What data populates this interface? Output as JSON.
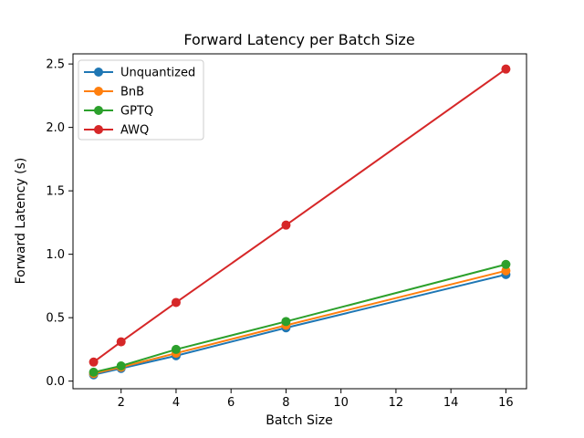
{
  "figure": {
    "background": "#ffffff",
    "frame_color": "#000000",
    "legend_border_color": "#cccccc"
  },
  "chart_data": {
    "type": "line",
    "title": "Forward Latency per Batch Size",
    "xlabel": "Batch Size",
    "ylabel": "Forward Latency (s)",
    "x": [
      1,
      2,
      4,
      8,
      16
    ],
    "series": [
      {
        "name": "Unquantized",
        "color": "#1f77b4",
        "values": [
          0.05,
          0.1,
          0.2,
          0.42,
          0.84
        ]
      },
      {
        "name": "BnB",
        "color": "#ff7f0e",
        "values": [
          0.06,
          0.11,
          0.22,
          0.44,
          0.87
        ]
      },
      {
        "name": "GPTQ",
        "color": "#2ca02c",
        "values": [
          0.07,
          0.12,
          0.25,
          0.47,
          0.92
        ]
      },
      {
        "name": "AWQ",
        "color": "#d62728",
        "values": [
          0.15,
          0.31,
          0.62,
          1.23,
          2.46
        ]
      }
    ],
    "xticks": [
      2,
      4,
      6,
      8,
      10,
      12,
      14,
      16
    ],
    "yticks": [
      0.0,
      0.5,
      1.0,
      1.5,
      2.0,
      2.5
    ],
    "xtick_labels": [
      "2",
      "4",
      "6",
      "8",
      "10",
      "12",
      "14",
      "16"
    ],
    "ytick_labels": [
      "0.0",
      "0.5",
      "1.0",
      "1.5",
      "2.0",
      "2.5"
    ],
    "xlim": [
      0.25,
      16.75
    ],
    "ylim": [
      -0.06,
      2.58
    ],
    "grid": false,
    "marker": "o",
    "legend_position": "upper left",
    "legend_entries": [
      "Unquantized",
      "BnB",
      "GPTQ",
      "AWQ"
    ]
  }
}
